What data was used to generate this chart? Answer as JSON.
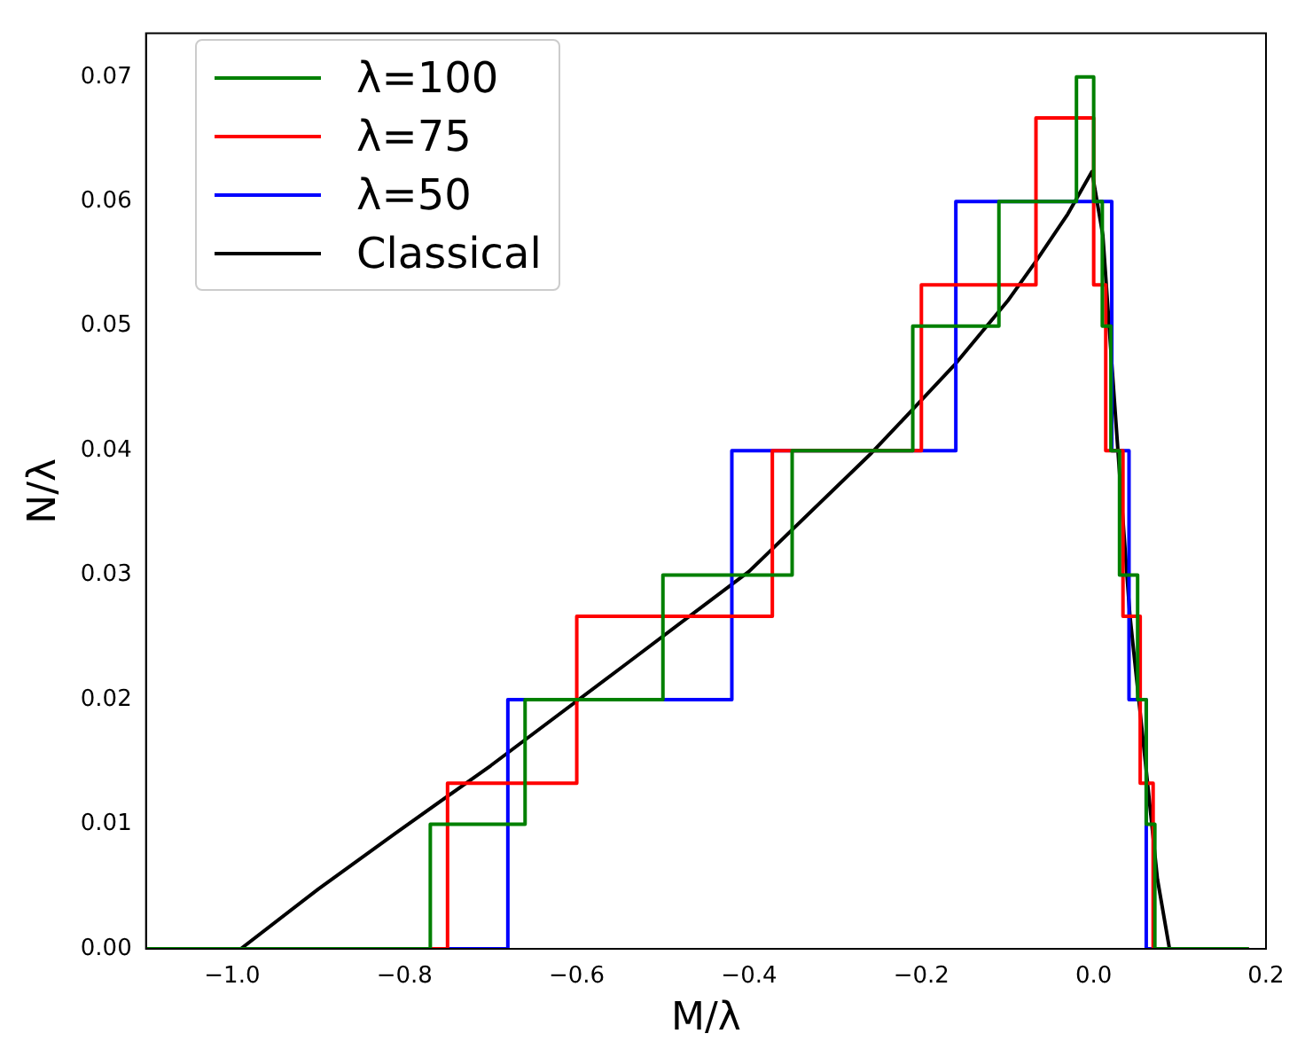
{
  "chart_data": {
    "type": "step",
    "xlabel": "M/λ",
    "ylabel": "N/λ",
    "legend": "top left",
    "grid": false,
    "xlim": [
      -1.1,
      0.2
    ],
    "ylim": [
      0,
      0.0735
    ],
    "xticks": [
      {
        "value": -1.0,
        "label": "−1.0"
      },
      {
        "value": -0.8,
        "label": "−0.8"
      },
      {
        "value": -0.6,
        "label": "−0.6"
      },
      {
        "value": -0.4,
        "label": "−0.4"
      },
      {
        "value": -0.2,
        "label": "−0.2"
      },
      {
        "value": 0,
        "label": "0.0"
      },
      {
        "value": 0.2,
        "label": "0.2"
      }
    ],
    "yticks": [
      {
        "value": 0,
        "label": "0.00"
      },
      {
        "value": 0.01,
        "label": "0.01"
      },
      {
        "value": 0.02,
        "label": "0.02"
      },
      {
        "value": 0.03,
        "label": "0.03"
      },
      {
        "value": 0.04,
        "label": "0.04"
      },
      {
        "value": 0.05,
        "label": "0.05"
      },
      {
        "value": 0.06,
        "label": "0.06"
      },
      {
        "value": 0.07,
        "label": "0.07"
      }
    ],
    "series": [
      {
        "name": "λ=100",
        "color": "#008000",
        "type": "step",
        "x": [
          -1.1,
          -0.77,
          -0.66,
          -0.5,
          -0.35,
          -0.21,
          -0.11,
          -0.02,
          0.0,
          0.01,
          0.02,
          0.03,
          0.051,
          0.061,
          0.071,
          0.18
        ],
        "values": [
          0,
          0.01,
          0.02,
          0.03,
          0.04,
          0.05,
          0.06,
          0.07,
          0.06,
          0.05,
          0.04,
          0.03,
          0.02,
          0.01,
          0,
          0
        ]
      },
      {
        "name": "λ=75",
        "color": "#ff0000",
        "type": "step",
        "x": [
          -1.1,
          -0.75,
          -0.6,
          -0.373,
          -0.2,
          -0.067,
          0.0,
          0.014,
          0.034,
          0.054,
          0.069,
          0.18
        ],
        "values": [
          0,
          0.0133,
          0.0267,
          0.04,
          0.0533,
          0.0667,
          0.0533,
          0.04,
          0.0267,
          0.0133,
          0,
          0
        ]
      },
      {
        "name": "λ=50",
        "color": "#0000ff",
        "type": "step",
        "x": [
          -1.1,
          -0.68,
          -0.42,
          -0.16,
          0.021,
          0.041,
          0.061,
          0.18
        ],
        "values": [
          0,
          0.02,
          0.04,
          0.06,
          0.04,
          0.02,
          0,
          0
        ]
      },
      {
        "name": "Classical",
        "color": "#000000",
        "type": "line",
        "x": [
          -0.99,
          -0.9,
          -0.81,
          -0.7,
          -0.544,
          -0.4,
          -0.258,
          -0.217,
          -0.16,
          -0.1,
          -0.067,
          -0.03,
          -0.002,
          0.0106,
          0.021,
          0.0297,
          0.042,
          0.06,
          0.074,
          0.088
        ],
        "values": [
          0,
          0.0048,
          0.0093,
          0.0147,
          0.0228,
          0.0303,
          0.0398,
          0.0428,
          0.047,
          0.052,
          0.0552,
          0.059,
          0.0624,
          0.0573,
          0.047,
          0.0385,
          0.0268,
          0.015,
          0.0056,
          0
        ]
      }
    ]
  }
}
